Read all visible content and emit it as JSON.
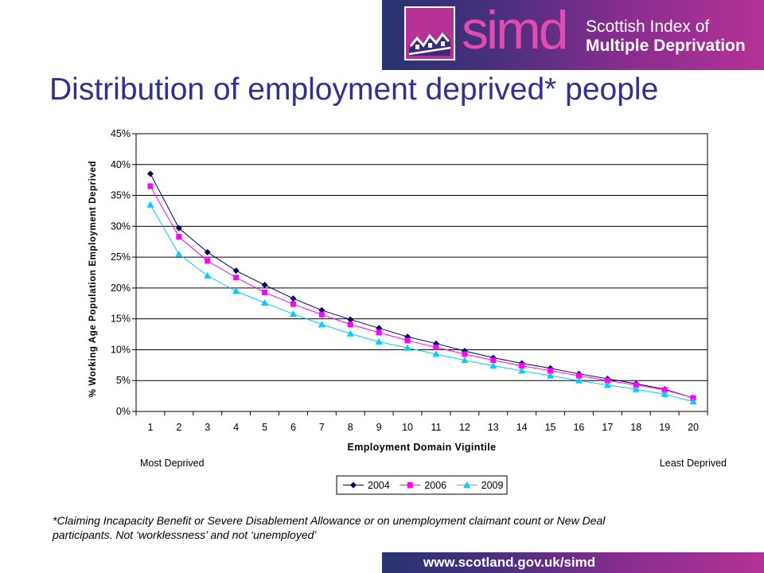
{
  "header": {
    "brand_word": "simd",
    "brand_line1": "Scottish Index of",
    "brand_line2": "Multiple Deprivation"
  },
  "slide_title": "Distribution of employment deprived* people",
  "chart_data": {
    "type": "line",
    "title": "",
    "xlabel": "Employment Domain Vigintile",
    "ylabel": "% Working Age Population Employment Deprived",
    "ylim": [
      0,
      45
    ],
    "yticks": [
      "0%",
      "5%",
      "10%",
      "15%",
      "20%",
      "25%",
      "30%",
      "35%",
      "40%",
      "45%"
    ],
    "grid": true,
    "legend": "bottom",
    "x": [
      1,
      2,
      3,
      4,
      5,
      6,
      7,
      8,
      9,
      10,
      11,
      12,
      13,
      14,
      15,
      16,
      17,
      18,
      19,
      20
    ],
    "annotations": {
      "left": "Most Deprived",
      "right": "Least Deprived"
    },
    "series": [
      {
        "name": "2004",
        "color": "#000066",
        "marker": "diamond",
        "values": [
          38.5,
          29.7,
          25.8,
          22.8,
          20.5,
          18.3,
          16.4,
          14.9,
          13.5,
          12.1,
          11.0,
          9.8,
          8.7,
          7.8,
          7.0,
          6.1,
          5.3,
          4.5,
          3.6,
          2.2
        ]
      },
      {
        "name": "2006",
        "color": "#ff00ff",
        "marker": "square",
        "values": [
          36.5,
          28.3,
          24.4,
          21.7,
          19.3,
          17.4,
          15.7,
          14.1,
          12.8,
          11.5,
          10.4,
          9.3,
          8.3,
          7.4,
          6.6,
          5.8,
          5.0,
          4.3,
          3.5,
          2.2
        ]
      },
      {
        "name": "2009",
        "color": "#00ccff",
        "marker": "triangle",
        "values": [
          33.5,
          25.5,
          22.0,
          19.5,
          17.6,
          15.8,
          14.1,
          12.6,
          11.3,
          10.3,
          9.3,
          8.3,
          7.4,
          6.6,
          5.8,
          5.0,
          4.3,
          3.6,
          2.8,
          1.6
        ]
      }
    ]
  },
  "footnote": "*Claiming Incapacity Benefit or Severe Disablement Allowance or on unemployment claimant count or New Deal participants. Not ‘worklessness’ and not ‘unemployed’",
  "footer": {
    "url": "www.scotland.gov.uk/simd"
  },
  "colors": {
    "title": "#2e3191",
    "brand_pink": "#e24bb0",
    "banner_start": "#27336f",
    "banner_end": "#b43296"
  },
  "icons": {
    "logo": "houses-logo-icon"
  }
}
